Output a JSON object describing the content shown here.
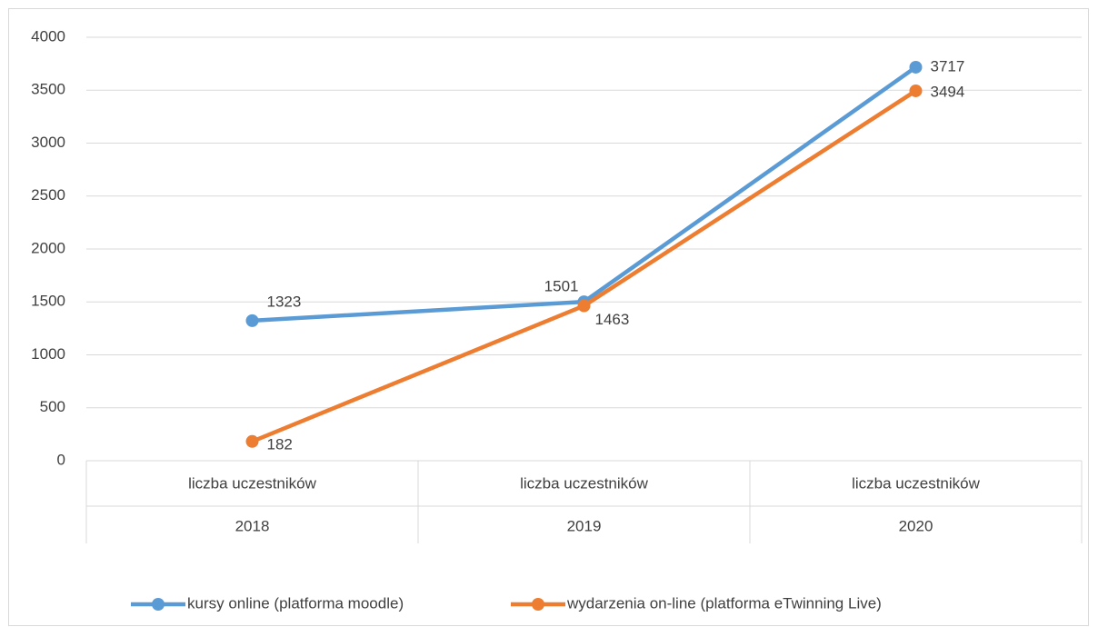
{
  "chart_data": {
    "type": "line",
    "categories": [
      "2018",
      "2019",
      "2020"
    ],
    "subcategories": [
      "liczba uczestników",
      "liczba uczestników",
      "liczba uczestników"
    ],
    "series": [
      {
        "name": "kursy online (platforma moodle)",
        "color": "#5b9bd5",
        "values": [
          1323,
          1501,
          3717
        ]
      },
      {
        "name": "wydarzenia on-line (platforma eTwinning Live)",
        "color": "#ed7d31",
        "values": [
          182,
          1463,
          3494
        ]
      }
    ],
    "ylim": [
      0,
      4000
    ],
    "yticks": [
      0,
      500,
      1000,
      1500,
      2000,
      2500,
      3000,
      3500,
      4000
    ],
    "grid": true,
    "legend": "bottom"
  }
}
